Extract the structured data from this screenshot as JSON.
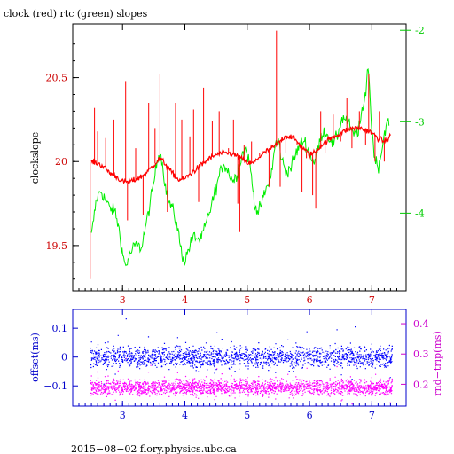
{
  "chart_data": [
    {
      "type": "line",
      "title": "clock (red) rtc (green) slopes",
      "ylabel": "clockslope",
      "xlim": [
        2.2,
        7.55
      ],
      "ylim": [
        19.23,
        20.82
      ],
      "y2lim": [
        -4.85,
        -1.93
      ],
      "x_ticks": [
        "3",
        "4",
        "5",
        "6",
        "7"
      ],
      "y_ticks": [
        "19.5",
        "20",
        "20.5"
      ],
      "y2_ticks": [
        "-2",
        "-3",
        "-4"
      ],
      "colors": {
        "clock": "#ff0000",
        "rtc": "#00ee00",
        "left_axis": "#cc0000",
        "right_axis": "#00cc00"
      },
      "series": [
        {
          "name": "clock",
          "axis": "left",
          "x": [
            2.5,
            2.6,
            2.7,
            2.8,
            2.9,
            3.0,
            3.1,
            3.2,
            3.3,
            3.4,
            3.5,
            3.6,
            3.7,
            3.8,
            3.9,
            4.0,
            4.1,
            4.2,
            4.3,
            4.4,
            4.5,
            4.6,
            4.7,
            4.8,
            4.9,
            5.0,
            5.1,
            5.2,
            5.3,
            5.4,
            5.5,
            5.6,
            5.7,
            5.8,
            5.9,
            6.0,
            6.1,
            6.2,
            6.3,
            6.4,
            6.5,
            6.6,
            6.7,
            6.8,
            6.9,
            7.0,
            7.1,
            7.2,
            7.3
          ],
          "values": [
            20.0,
            19.99,
            19.97,
            19.93,
            19.91,
            19.88,
            19.88,
            19.89,
            19.91,
            19.94,
            19.98,
            20.02,
            19.98,
            19.93,
            19.89,
            19.9,
            19.93,
            19.96,
            19.99,
            20.02,
            20.04,
            20.05,
            20.05,
            20.04,
            20.02,
            19.99,
            19.99,
            20.03,
            20.06,
            20.08,
            20.11,
            20.15,
            20.15,
            20.12,
            20.08,
            20.04,
            20.06,
            20.1,
            20.13,
            20.15,
            20.17,
            20.19,
            20.2,
            20.2,
            20.19,
            20.17,
            20.14,
            20.12,
            20.15
          ],
          "spikes": [
            [
              2.48,
              19.3
            ],
            [
              2.55,
              20.32
            ],
            [
              2.6,
              20.18
            ],
            [
              2.73,
              20.14
            ],
            [
              2.86,
              20.25
            ],
            [
              3.05,
              20.48
            ],
            [
              3.08,
              19.65
            ],
            [
              3.21,
              20.08
            ],
            [
              3.33,
              19.68
            ],
            [
              3.42,
              20.35
            ],
            [
              3.52,
              20.2
            ],
            [
              3.6,
              20.52
            ],
            [
              3.72,
              19.7
            ],
            [
              3.85,
              20.35
            ],
            [
              3.95,
              20.25
            ],
            [
              4.08,
              20.15
            ],
            [
              4.14,
              20.31
            ],
            [
              4.22,
              19.76
            ],
            [
              4.3,
              20.44
            ],
            [
              4.44,
              20.24
            ],
            [
              4.55,
              20.3
            ],
            [
              4.7,
              20.08
            ],
            [
              4.78,
              20.25
            ],
            [
              4.85,
              19.75
            ],
            [
              4.88,
              19.58
            ],
            [
              4.95,
              20.1
            ],
            [
              5.07,
              20.12
            ],
            [
              5.2,
              20.05
            ],
            [
              5.35,
              19.85
            ],
            [
              5.47,
              20.78
            ],
            [
              5.53,
              19.85
            ],
            [
              5.62,
              20.05
            ],
            [
              5.8,
              20.1
            ],
            [
              5.88,
              19.82
            ],
            [
              5.95,
              20.02
            ],
            [
              6.05,
              19.8
            ],
            [
              6.1,
              19.72
            ],
            [
              6.18,
              20.3
            ],
            [
              6.25,
              20.05
            ],
            [
              6.38,
              20.28
            ],
            [
              6.5,
              20.12
            ],
            [
              6.6,
              20.38
            ],
            [
              6.68,
              20.08
            ],
            [
              6.8,
              20.3
            ],
            [
              6.9,
              20.1
            ],
            [
              6.95,
              20.52
            ],
            [
              7.05,
              20.0
            ],
            [
              7.12,
              20.3
            ],
            [
              7.2,
              20.0
            ]
          ]
        },
        {
          "name": "rtc",
          "axis": "right",
          "x": [
            2.5,
            2.58,
            2.65,
            2.72,
            2.8,
            2.88,
            2.95,
            3.0,
            3.05,
            3.12,
            3.2,
            3.3,
            3.4,
            3.48,
            3.55,
            3.6,
            3.65,
            3.72,
            3.8,
            3.88,
            3.95,
            4.0,
            4.08,
            4.15,
            4.25,
            4.35,
            4.45,
            4.55,
            4.62,
            4.7,
            4.78,
            4.85,
            4.92,
            4.98,
            5.05,
            5.12,
            5.18,
            5.25,
            5.3,
            5.38,
            5.45,
            5.5,
            5.55,
            5.62,
            5.7,
            5.78,
            5.85,
            5.92,
            6.0,
            6.08,
            6.15,
            6.22,
            6.3,
            6.38,
            6.45,
            6.5,
            6.55,
            6.62,
            6.7,
            6.78,
            6.85,
            6.9,
            6.93,
            6.95,
            7.0,
            7.05,
            7.1,
            7.15,
            7.22,
            7.28
          ],
          "values": [
            -4.25,
            -3.85,
            -3.75,
            -3.85,
            -3.95,
            -3.98,
            -4.2,
            -4.45,
            -4.58,
            -4.45,
            -4.35,
            -4.38,
            -4.05,
            -3.75,
            -3.45,
            -3.3,
            -3.52,
            -3.85,
            -3.95,
            -4.15,
            -4.45,
            -4.52,
            -4.35,
            -4.25,
            -4.3,
            -4.1,
            -3.85,
            -3.6,
            -3.45,
            -3.55,
            -3.65,
            -3.55,
            -3.35,
            -3.3,
            -3.5,
            -3.9,
            -4.0,
            -3.85,
            -3.75,
            -3.6,
            -3.25,
            -3.2,
            -3.4,
            -3.55,
            -3.5,
            -3.35,
            -3.25,
            -3.2,
            -3.35,
            -3.45,
            -3.25,
            -3.1,
            -3.15,
            -3.25,
            -3.15,
            -3.0,
            -2.95,
            -3.0,
            -3.15,
            -3.1,
            -2.9,
            -2.7,
            -2.4,
            -2.45,
            -3.1,
            -3.4,
            -3.5,
            -3.35,
            -3.05,
            -3.0
          ]
        }
      ]
    },
    {
      "type": "scatter",
      "ylabel": "offset(ms)",
      "y2label": "rnd−trip(ms)",
      "xlim": [
        2.2,
        7.55
      ],
      "ylim": [
        -0.17,
        0.165
      ],
      "y2lim": [
        0.128,
        0.447
      ],
      "x_ticks": [
        "3",
        "4",
        "5",
        "6",
        "7"
      ],
      "y_ticks": [
        "0.1",
        "0",
        "−0.1"
      ],
      "y2_ticks": [
        "0.4",
        "0.3",
        "0.2"
      ],
      "colors": {
        "offset": "#0000ff",
        "roundtrip": "#ff00ff",
        "left_axis": "#0000cc",
        "right_axis": "#cc00cc"
      },
      "series": [
        {
          "name": "offset",
          "axis": "left",
          "x_range": [
            2.48,
            7.32
          ],
          "center": 0.0,
          "spread": 0.025
        },
        {
          "name": "roundtrip",
          "axis": "right",
          "x_range": [
            2.48,
            7.32
          ],
          "center": 0.19,
          "spread": 0.018
        }
      ]
    }
  ],
  "footer": "2015−08−02 flory.physics.ubc.ca"
}
